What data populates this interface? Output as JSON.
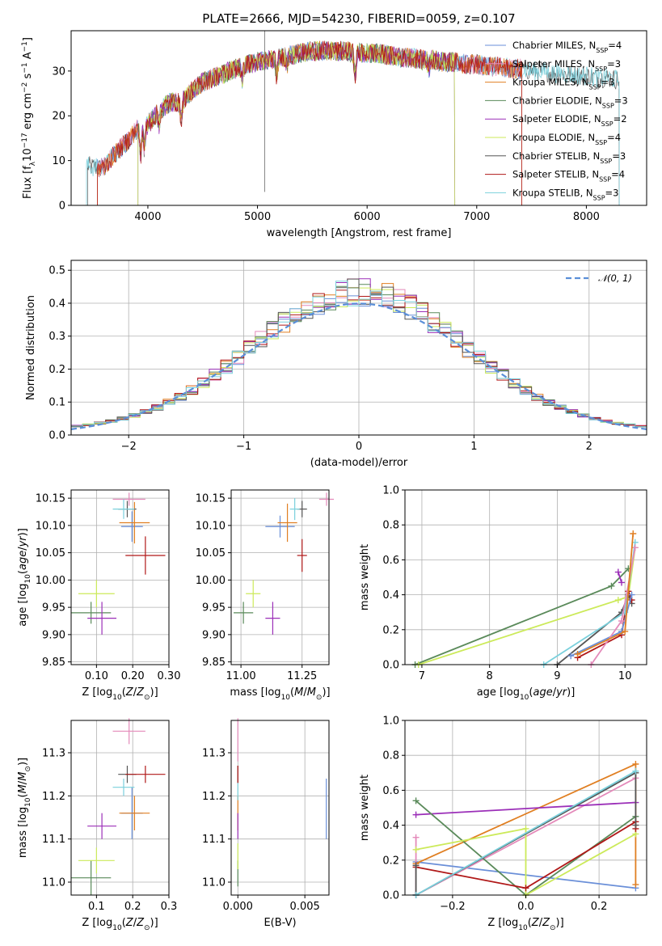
{
  "figure_title": "PLATE=2666, MJD=54230, FIBERID=0059, z=0.107",
  "colors": {
    "chabrier_miles": "#6a8fd8",
    "salpeter_miles": "#e48aba",
    "kroupa_miles": "#e07f22",
    "chabrier_elodie": "#5a8a5a",
    "salpeter_elodie": "#9b2fb8",
    "kroupa_elodie": "#ccea5a",
    "chabrier_stelib": "#555555",
    "salpeter_stelib": "#b01818",
    "kroupa_stelib": "#7ad0dc",
    "normal": "#5a8fd8",
    "grid": "#b0b0b0"
  },
  "chart_data": [
    {
      "id": "spectrum",
      "type": "line",
      "xlabel": "wavelength [Angstrom, rest frame]",
      "ylabel": "Flux [f_λ 10^-17 erg cm^-2 s^-1 A^-1]",
      "xlim": [
        3300,
        8550
      ],
      "ylim": [
        0,
        39
      ],
      "xticks": [
        4000,
        5000,
        6000,
        7000,
        8000
      ],
      "yticks": [
        0,
        10,
        20,
        30
      ],
      "grid": false,
      "legend_position": "upper-right",
      "continuum_points": [
        [
          3450,
          8.8
        ],
        [
          3550,
          8.3
        ],
        [
          3600,
          8.5
        ],
        [
          3700,
          11.5
        ],
        [
          3800,
          14
        ],
        [
          3900,
          17
        ],
        [
          4000,
          18
        ],
        [
          4100,
          21
        ],
        [
          4200,
          23
        ],
        [
          4300,
          23
        ],
        [
          4400,
          25.5
        ],
        [
          4500,
          27.5
        ],
        [
          4600,
          28.5
        ],
        [
          4700,
          29.5
        ],
        [
          4800,
          30.5
        ],
        [
          4900,
          31.5
        ],
        [
          5000,
          32
        ],
        [
          5100,
          32.5
        ],
        [
          5200,
          33
        ],
        [
          5300,
          33.5
        ],
        [
          5400,
          34
        ],
        [
          5500,
          34.5
        ],
        [
          5600,
          34.5
        ],
        [
          5700,
          34.5
        ],
        [
          5800,
          34.5
        ],
        [
          5900,
          34
        ],
        [
          6000,
          34
        ],
        [
          6100,
          34
        ],
        [
          6200,
          33.5
        ],
        [
          6300,
          33
        ],
        [
          6400,
          33
        ],
        [
          6500,
          32.5
        ],
        [
          6600,
          32.5
        ],
        [
          6700,
          32
        ],
        [
          6800,
          32
        ],
        [
          6900,
          31.5
        ],
        [
          7000,
          31.5
        ],
        [
          7100,
          31
        ],
        [
          7200,
          31
        ],
        [
          7300,
          30.5
        ],
        [
          7400,
          30.5
        ],
        [
          7500,
          30
        ],
        [
          7600,
          30
        ],
        [
          7700,
          29.5
        ],
        [
          7800,
          29.5
        ],
        [
          7900,
          29
        ],
        [
          8000,
          29
        ],
        [
          8100,
          28.5
        ],
        [
          8200,
          28.5
        ],
        [
          8300,
          28
        ]
      ],
      "series": [
        {
          "name": "Chabrier MILES, N_SSP=4",
          "color_key": "chabrier_miles",
          "x_range": [
            3540,
            7410
          ]
        },
        {
          "name": "Salpeter MILES, N_SSP=3",
          "color_key": "salpeter_miles",
          "x_range": [
            3540,
            7410
          ]
        },
        {
          "name": "Kroupa MILES, N_SSP=3",
          "color_key": "kroupa_miles",
          "x_range": [
            3540,
            7410
          ]
        },
        {
          "name": "Chabrier ELODIE, N_SSP=3",
          "color_key": "chabrier_elodie",
          "x_range": [
            3910,
            6800
          ]
        },
        {
          "name": "Salpeter ELODIE, N_SSP=2",
          "color_key": "salpeter_elodie",
          "x_range": [
            3910,
            6800
          ]
        },
        {
          "name": "Kroupa ELODIE, N_SSP=4",
          "color_key": "kroupa_elodie",
          "x_range": [
            3910,
            6800
          ]
        },
        {
          "name": "Chabrier STELIB, N_SSP=3",
          "color_key": "chabrier_stelib",
          "x_range": [
            3450,
            8300
          ]
        },
        {
          "name": "Salpeter STELIB, N_SSP=4",
          "color_key": "salpeter_stelib",
          "x_range": [
            3540,
            7410
          ]
        },
        {
          "name": "Kroupa STELIB, N_SSP=3",
          "color_key": "kroupa_stelib",
          "x_range": [
            3440,
            8300
          ]
        }
      ]
    },
    {
      "id": "residuals",
      "type": "line",
      "xlabel": "(data-model)/error",
      "ylabel": "Normed distribution",
      "xlim": [
        -2.5,
        2.5
      ],
      "ylim": [
        0,
        0.53
      ],
      "xticks": [
        -2,
        -1,
        0,
        1,
        2
      ],
      "yticks": [
        0.0,
        0.1,
        0.2,
        0.3,
        0.4,
        0.5
      ],
      "grid": true,
      "legend_position": "upper-right",
      "bin_width": 0.1,
      "reference_curve": "N(0,1)",
      "reference_label": "𝒩(0, 1)"
    },
    {
      "id": "age-vs-Z",
      "type": "scatter",
      "xlabel": "Z [log10(Z/Z⊙)]",
      "ylabel": "age  [log10(age/yr)]",
      "xlim": [
        0.03,
        0.3
      ],
      "ylim": [
        9.845,
        10.165
      ],
      "xticks": [
        0.1,
        0.2,
        0.3
      ],
      "yticks": [
        9.85,
        9.9,
        9.95,
        10.0,
        10.05,
        10.1,
        10.15
      ],
      "grid": true,
      "points": [
        {
          "color_key": "chabrier_miles",
          "x": 0.198,
          "xerr": 0.03,
          "y": 10.098,
          "yerr": 0.028
        },
        {
          "color_key": "salpeter_miles",
          "x": 0.19,
          "xerr": 0.045,
          "y": 10.148,
          "yerr": 0.012
        },
        {
          "color_key": "kroupa_miles",
          "x": 0.205,
          "xerr": 0.042,
          "y": 10.105,
          "yerr": 0.038
        },
        {
          "color_key": "chabrier_elodie",
          "x": 0.085,
          "xerr": 0.055,
          "y": 9.94,
          "yerr": 0.02
        },
        {
          "color_key": "salpeter_elodie",
          "x": 0.115,
          "xerr": 0.04,
          "y": 9.93,
          "yerr": 0.03
        },
        {
          "color_key": "kroupa_elodie",
          "x": 0.1,
          "xerr": 0.05,
          "y": 9.975,
          "yerr": 0.025
        },
        {
          "color_key": "chabrier_stelib",
          "x": 0.185,
          "xerr": 0.025,
          "y": 10.13,
          "yerr": 0.015
        },
        {
          "color_key": "salpeter_stelib",
          "x": 0.235,
          "xerr": 0.055,
          "y": 10.045,
          "yerr": 0.035
        },
        {
          "color_key": "kroupa_stelib",
          "x": 0.175,
          "xerr": 0.03,
          "y": 10.13,
          "yerr": 0.018
        }
      ]
    },
    {
      "id": "age-vs-mass",
      "type": "scatter",
      "xlabel": "mass [log10(M/M⊙)]",
      "ylabel": "",
      "xlim": [
        10.96,
        11.36
      ],
      "ylim": [
        9.845,
        10.165
      ],
      "xticks": [
        11.0,
        11.25
      ],
      "yticks": [
        9.85,
        9.9,
        9.95,
        10.0,
        10.05,
        10.1,
        10.15
      ],
      "grid": true,
      "points": [
        {
          "color_key": "chabrier_miles",
          "x": 11.16,
          "xerr": 0.06,
          "y": 10.098,
          "yerr": 0.02
        },
        {
          "color_key": "salpeter_miles",
          "x": 11.35,
          "xerr": 0.03,
          "y": 10.148,
          "yerr": 0.012
        },
        {
          "color_key": "kroupa_miles",
          "x": 11.19,
          "xerr": 0.04,
          "y": 10.105,
          "yerr": 0.035
        },
        {
          "color_key": "chabrier_elodie",
          "x": 11.01,
          "xerr": 0.04,
          "y": 9.94,
          "yerr": 0.02
        },
        {
          "color_key": "salpeter_elodie",
          "x": 11.13,
          "xerr": 0.03,
          "y": 9.93,
          "yerr": 0.03
        },
        {
          "color_key": "kroupa_elodie",
          "x": 11.05,
          "xerr": 0.03,
          "y": 9.975,
          "yerr": 0.025
        },
        {
          "color_key": "chabrier_stelib",
          "x": 11.25,
          "xerr": 0.02,
          "y": 10.13,
          "yerr": 0.015
        },
        {
          "color_key": "salpeter_stelib",
          "x": 11.25,
          "xerr": 0.02,
          "y": 10.045,
          "yerr": 0.03
        },
        {
          "color_key": "kroupa_stelib",
          "x": 11.22,
          "xerr": 0.02,
          "y": 10.13,
          "yerr": 0.02
        }
      ]
    },
    {
      "id": "massweight-vs-age",
      "type": "line",
      "xlabel": "age  [log10(age/yr)]",
      "ylabel": "mass weight",
      "xlim": [
        6.75,
        10.32
      ],
      "ylim": [
        0,
        1
      ],
      "xticks": [
        7,
        8,
        9,
        10
      ],
      "yticks": [
        0.0,
        0.2,
        0.4,
        0.6,
        0.8,
        1.0
      ],
      "grid": true,
      "series": [
        {
          "color_key": "chabrier_elodie",
          "points": [
            [
              6.9,
              0.0
            ],
            [
              9.8,
              0.45
            ],
            [
              10.05,
              0.55
            ]
          ]
        },
        {
          "color_key": "kroupa_elodie",
          "points": [
            [
              6.95,
              0.0
            ],
            [
              9.9,
              0.37
            ],
            [
              10.05,
              0.39
            ],
            [
              10.15,
              0.67
            ]
          ]
        },
        {
          "color_key": "salpeter_elodie",
          "points": [
            [
              9.9,
              0.53
            ],
            [
              9.95,
              0.47
            ]
          ]
        },
        {
          "color_key": "chabrier_stelib",
          "points": [
            [
              9.0,
              0.0
            ],
            [
              9.95,
              0.3
            ],
            [
              10.05,
              0.4
            ],
            [
              10.1,
              0.35
            ]
          ]
        },
        {
          "color_key": "salpeter_stelib",
          "points": [
            [
              9.3,
              0.04
            ],
            [
              9.95,
              0.17
            ],
            [
              10.05,
              0.42
            ],
            [
              10.1,
              0.37
            ]
          ]
        },
        {
          "color_key": "kroupa_stelib",
          "points": [
            [
              8.8,
              0.0
            ],
            [
              10.0,
              0.3
            ],
            [
              10.15,
              0.7
            ]
          ]
        },
        {
          "color_key": "chabrier_miles",
          "points": [
            [
              9.2,
              0.05
            ],
            [
              9.95,
              0.19
            ],
            [
              10.1,
              0.4
            ]
          ]
        },
        {
          "color_key": "salpeter_miles",
          "points": [
            [
              9.5,
              0.0
            ],
            [
              9.95,
              0.25
            ],
            [
              10.15,
              0.67
            ]
          ]
        },
        {
          "color_key": "kroupa_miles",
          "points": [
            [
              9.3,
              0.06
            ],
            [
              10.0,
              0.19
            ],
            [
              10.12,
              0.75
            ]
          ]
        }
      ]
    },
    {
      "id": "mass-vs-Z",
      "type": "scatter",
      "xlabel": "Z [log10(Z/Z⊙)]",
      "ylabel": "mass [log10(M/M⊙)]",
      "xlim": [
        0.03,
        0.3
      ],
      "ylim": [
        10.97,
        11.375
      ],
      "xticks": [
        0.1,
        0.2,
        0.3
      ],
      "yticks": [
        11.0,
        11.1,
        11.2,
        11.3
      ],
      "grid": true,
      "points": [
        {
          "color_key": "chabrier_miles",
          "x": 0.198,
          "xerr": 0.03,
          "y": 11.16,
          "yerr": 0.06
        },
        {
          "color_key": "salpeter_miles",
          "x": 0.19,
          "xerr": 0.045,
          "y": 11.35,
          "yerr": 0.03
        },
        {
          "color_key": "kroupa_miles",
          "x": 0.205,
          "xerr": 0.042,
          "y": 11.16,
          "yerr": 0.04
        },
        {
          "color_key": "chabrier_elodie",
          "x": 0.085,
          "xerr": 0.055,
          "y": 11.01,
          "yerr": 0.04
        },
        {
          "color_key": "salpeter_elodie",
          "x": 0.115,
          "xerr": 0.04,
          "y": 11.13,
          "yerr": 0.03
        },
        {
          "color_key": "kroupa_elodie",
          "x": 0.1,
          "xerr": 0.05,
          "y": 11.05,
          "yerr": 0.03
        },
        {
          "color_key": "chabrier_stelib",
          "x": 0.185,
          "xerr": 0.025,
          "y": 11.25,
          "yerr": 0.02
        },
        {
          "color_key": "salpeter_stelib",
          "x": 0.235,
          "xerr": 0.055,
          "y": 11.25,
          "yerr": 0.02
        },
        {
          "color_key": "kroupa_stelib",
          "x": 0.175,
          "xerr": 0.03,
          "y": 11.22,
          "yerr": 0.02
        }
      ]
    },
    {
      "id": "mass-vs-ebv",
      "type": "scatter",
      "xlabel": "E(B-V)",
      "ylabel": "",
      "xlim": [
        -0.0005,
        0.0068
      ],
      "ylim": [
        10.97,
        11.375
      ],
      "xticks": [
        0.0,
        0.005
      ],
      "xtick_labels": [
        "0.000",
        "0.005"
      ],
      "yticks": [
        11.0,
        11.1,
        11.2,
        11.3
      ],
      "grid": true,
      "points": [
        {
          "color_key": "chabrier_miles",
          "x": 0.0066,
          "y": 11.17,
          "yerr": 0.07
        },
        {
          "color_key": "salpeter_miles",
          "x": 0.0,
          "y": 11.33,
          "yerr": 0.05
        },
        {
          "color_key": "kroupa_miles",
          "x": 0.0,
          "y": 11.16,
          "yerr": 0.04
        },
        {
          "color_key": "chabrier_elodie",
          "x": 0.0,
          "y": 11.02,
          "yerr": 0.03
        },
        {
          "color_key": "salpeter_elodie",
          "x": 0.0,
          "y": 11.13,
          "yerr": 0.03
        },
        {
          "color_key": "kroupa_elodie",
          "x": 0.0,
          "y": 11.06,
          "yerr": 0.03
        },
        {
          "color_key": "chabrier_stelib",
          "x": 0.0,
          "y": 11.25,
          "yerr": 0.02
        },
        {
          "color_key": "salpeter_stelib",
          "x": 0.0,
          "y": 11.25,
          "yerr": 0.02
        },
        {
          "color_key": "kroupa_stelib",
          "x": 0.0,
          "y": 11.21,
          "yerr": 0.02
        }
      ]
    },
    {
      "id": "massweight-vs-Z",
      "type": "line",
      "xlabel": "Z [log10(Z/Z⊙)]",
      "ylabel": "mass weight",
      "xlim": [
        -0.33,
        0.33
      ],
      "ylim": [
        0,
        1
      ],
      "xticks": [
        -0.2,
        0.0,
        0.2
      ],
      "yticks": [
        0.0,
        0.2,
        0.4,
        0.6,
        0.8,
        1.0
      ],
      "grid": true,
      "series": [
        {
          "color_key": "chabrier_miles",
          "points": [
            [
              -0.3,
              0.19
            ],
            [
              0.3,
              0.04
            ]
          ]
        },
        {
          "color_key": "kroupa_miles",
          "points": [
            [
              -0.3,
              0.18
            ],
            [
              0.3,
              0.75
            ],
            [
              0.3,
              0.06
            ]
          ]
        },
        {
          "color_key": "salpeter_miles",
          "points": [
            [
              -0.3,
              0.33
            ],
            [
              -0.3,
              0.0
            ],
            [
              0.3,
              0.67
            ]
          ]
        },
        {
          "color_key": "salpeter_elodie",
          "points": [
            [
              -0.3,
              0.46
            ],
            [
              0.3,
              0.53
            ]
          ]
        },
        {
          "color_key": "chabrier_elodie",
          "points": [
            [
              -0.3,
              0.54
            ],
            [
              0.0,
              0.0
            ],
            [
              0.3,
              0.45
            ]
          ]
        },
        {
          "color_key": "kroupa_elodie",
          "points": [
            [
              -0.3,
              0.26
            ],
            [
              0.0,
              0.38
            ],
            [
              0.0,
              0.0
            ],
            [
              0.3,
              0.35
            ]
          ]
        },
        {
          "color_key": "salpeter_stelib",
          "points": [
            [
              -0.3,
              0.16
            ],
            [
              0.0,
              0.04
            ],
            [
              0.3,
              0.42
            ],
            [
              0.3,
              0.38
            ]
          ]
        },
        {
          "color_key": "chabrier_stelib",
          "points": [
            [
              -0.3,
              0.17
            ],
            [
              -0.3,
              0.0
            ],
            [
              0.3,
              0.7
            ],
            [
              0.3,
              0.4
            ]
          ]
        },
        {
          "color_key": "kroupa_stelib",
          "points": [
            [
              -0.3,
              0.0
            ],
            [
              0.3,
              0.71
            ]
          ]
        }
      ]
    }
  ]
}
